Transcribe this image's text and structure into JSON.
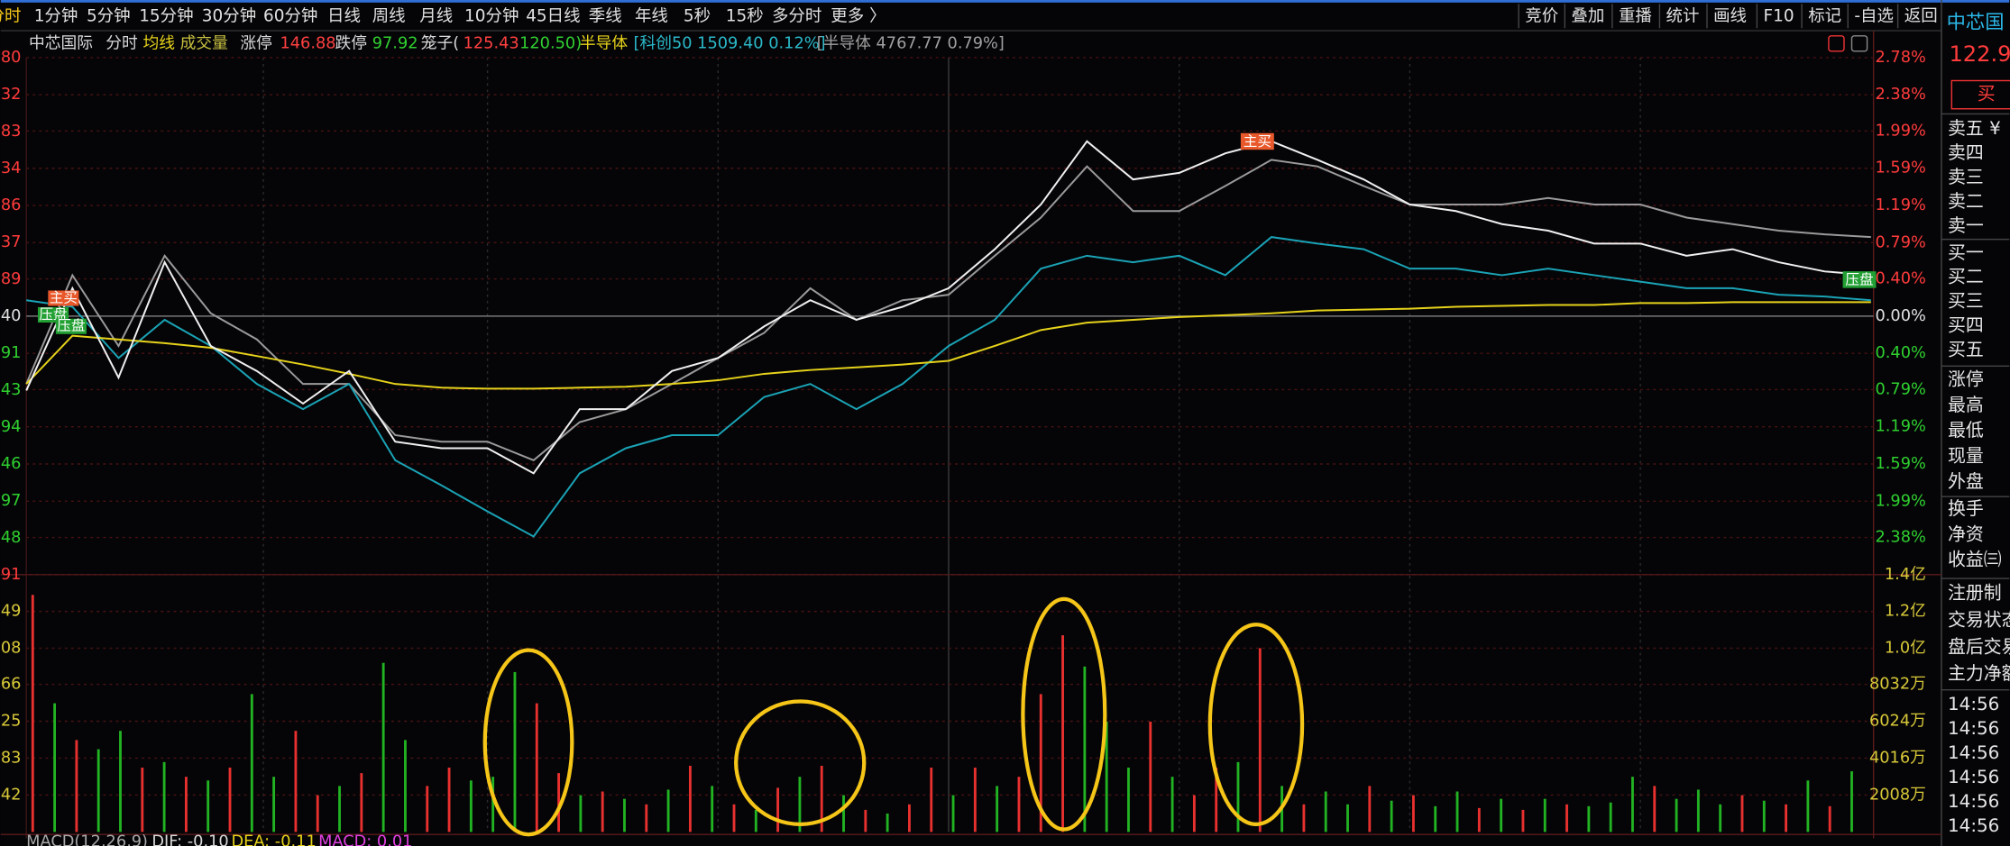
{
  "menu": {
    "periods": [
      "分时",
      "1分钟",
      "5分钟",
      "15分钟",
      "30分钟",
      "60分钟",
      "日线",
      "周线",
      "月线",
      "10分钟",
      "45日线",
      "季线",
      "年线",
      "5秒",
      "15秒",
      "多分时",
      "更多 〉"
    ],
    "tools": [
      "竞价",
      "叠加",
      "重播",
      "统计",
      "画线",
      "F10",
      "标记",
      "-自选",
      "返回"
    ]
  },
  "info": {
    "name": "中芯国际",
    "mode": "分时",
    "avg": "均线",
    "volume": "成交量",
    "limit_up_label": "涨停",
    "limit_up": "146.88",
    "limit_down_label": "跌停",
    "limit_down": "97.92",
    "cage_label": "笼子(",
    "cage_high": "125.43",
    "cage_low": "120.50)",
    "sector": "半导体",
    "index1": "[科创50 1509.40 0.12%]",
    "index2": "[半导体 4767.77 0.79%]"
  },
  "markers": [
    "主买",
    "压盘",
    "压盘",
    "主买",
    "压盘"
  ],
  "chart_data": [
    {
      "type": "line",
      "ylim": [
        -2.78,
        2.78
      ],
      "yticks": [
        {
          "value": 2.78,
          "label": "2.78%"
        },
        {
          "value": 2.38,
          "label": "2.38%"
        },
        {
          "value": 1.99,
          "label": "1.99%"
        },
        {
          "value": 1.59,
          "label": "1.59%"
        },
        {
          "value": 1.19,
          "label": "1.19%"
        },
        {
          "value": 0.79,
          "label": "0.79%"
        },
        {
          "value": 0.4,
          "label": "0.40%"
        },
        {
          "value": 0,
          "label": "0.00%"
        },
        {
          "value": -0.4,
          "label": "0.40%"
        },
        {
          "value": -0.79,
          "label": "0.79%"
        },
        {
          "value": -1.19,
          "label": "1.19%"
        },
        {
          "value": -1.59,
          "label": "1.59%"
        },
        {
          "value": -1.99,
          "label": "1.99%"
        },
        {
          "value": -2.38,
          "label": "2.38%"
        }
      ],
      "left_labels": [
        "80",
        "32",
        "83",
        "34",
        "86",
        "37",
        "89",
        "40",
        "91",
        "43",
        "94",
        "46",
        "97",
        "48",
        "91"
      ],
      "grid": true,
      "series": [
        {
          "color": "#9a9a9a",
          "values": [
            -0.73,
            0.44,
            -0.32,
            0.65,
            0.03,
            -0.25,
            -0.73,
            -0.73,
            -1.28,
            -1.35,
            -1.35,
            -1.55,
            -1.14,
            -1.0,
            -0.73,
            -0.45,
            -0.18,
            0.3,
            -0.04,
            0.17,
            0.23,
            0.65,
            1.06,
            1.61,
            1.13,
            1.13,
            1.4,
            1.68,
            1.61,
            1.4,
            1.2,
            1.2,
            1.2,
            1.27,
            1.2,
            1.2,
            1.06,
            0.99,
            0.92,
            0.88,
            0.85
          ]
        },
        {
          "color": "#1aa3b5",
          "values": [
            0.17,
            0.1,
            -0.45,
            -0.04,
            -0.32,
            -0.73,
            -1.0,
            -0.73,
            -1.55,
            -1.82,
            -2.1,
            -2.37,
            -1.69,
            -1.42,
            -1.28,
            -1.28,
            -0.87,
            -0.73,
            -1.0,
            -0.73,
            -0.32,
            -0.04,
            0.51,
            0.65,
            0.58,
            0.65,
            0.44,
            0.85,
            0.78,
            0.72,
            0.51,
            0.51,
            0.44,
            0.51,
            0.44,
            0.37,
            0.3,
            0.3,
            0.23,
            0.21,
            0.17
          ]
        },
        {
          "color": "#e6d21a",
          "values": [
            -0.73,
            -0.21,
            -0.25,
            -0.29,
            -0.34,
            -0.43,
            -0.52,
            -0.62,
            -0.73,
            -0.77,
            -0.78,
            -0.78,
            -0.77,
            -0.76,
            -0.73,
            -0.69,
            -0.62,
            -0.58,
            -0.55,
            -0.52,
            -0.48,
            -0.32,
            -0.15,
            -0.07,
            -0.04,
            -0.01,
            0.01,
            0.03,
            0.06,
            0.07,
            0.08,
            0.1,
            0.11,
            0.12,
            0.12,
            0.14,
            0.14,
            0.15,
            0.15,
            0.15,
            0.15
          ]
        },
        {
          "color": "#f0f0f0",
          "values": [
            -0.8,
            0.3,
            -0.66,
            0.58,
            -0.32,
            -0.59,
            -0.94,
            -0.59,
            -1.35,
            -1.42,
            -1.42,
            -1.69,
            -1.0,
            -1.0,
            -0.59,
            -0.45,
            -0.11,
            0.17,
            -0.04,
            0.1,
            0.3,
            0.72,
            1.2,
            1.88,
            1.47,
            1.54,
            1.75,
            1.88,
            1.68,
            1.47,
            1.2,
            1.13,
            0.99,
            0.92,
            0.78,
            0.78,
            0.65,
            0.72,
            0.58,
            0.48,
            0.44
          ]
        }
      ]
    },
    {
      "type": "bar",
      "ylim": [
        0,
        14000
      ],
      "yticks": [
        {
          "value": 14000,
          "label": "1.4亿"
        },
        {
          "value": 12000,
          "label": "1.2亿"
        },
        {
          "value": 10000,
          "label": "1.0亿"
        },
        {
          "value": 8032,
          "label": "8032万"
        },
        {
          "value": 6024,
          "label": "6024万"
        },
        {
          "value": 4016,
          "label": "4016万"
        },
        {
          "value": 2008,
          "label": "2008万"
        }
      ],
      "left_labels": [
        null,
        "49",
        "08",
        "66",
        "25",
        "83",
        "42"
      ],
      "grid": true,
      "values": [
        12900,
        7000,
        5000,
        4500,
        5500,
        3500,
        3800,
        3000,
        2800,
        3500,
        7500,
        3000,
        5500,
        2000,
        2500,
        3200,
        9200,
        5000,
        2500,
        3500,
        2800,
        3000,
        8700,
        7000,
        3200,
        2000,
        2200,
        1800,
        1500,
        2300,
        3600,
        2500,
        1500,
        1200,
        2400,
        3000,
        3600,
        2000,
        1200,
        1000,
        1500,
        3500,
        2000,
        3500,
        2500,
        3000,
        7500,
        10700,
        9000,
        6000,
        3500,
        6000,
        3000,
        2000,
        3500,
        3800,
        10000,
        2500,
        1500,
        2200,
        1500,
        2500,
        1700,
        2000,
        1400,
        2200,
        1300,
        1800,
        1200,
        1800,
        1500,
        1400,
        1600,
        3000,
        2500,
        1800,
        2300,
        1500,
        2000,
        1700,
        1500,
        2800,
        1400,
        3300
      ],
      "colors": [
        "#e8312f",
        "#22b322",
        "#e8312f",
        "#22b322",
        "#22b322",
        "#e8312f",
        "#22b322",
        "#e8312f",
        "#22b322",
        "#e8312f",
        "#22b322",
        "#22b322",
        "#e8312f",
        "#e8312f",
        "#22b322",
        "#e8312f",
        "#22b322",
        "#22b322",
        "#e8312f",
        "#e8312f",
        "#22b322",
        "#22b322",
        "#22b322",
        "#e8312f",
        "#e8312f",
        "#22b322",
        "#e8312f",
        "#22b322",
        "#e8312f",
        "#22b322",
        "#e8312f",
        "#22b322",
        "#e8312f",
        "#22b322",
        "#e8312f",
        "#22b322",
        "#e8312f",
        "#22b322",
        "#e8312f",
        "#22b322",
        "#e8312f",
        "#e8312f",
        "#22b322",
        "#e8312f",
        "#22b322",
        "#e8312f",
        "#e8312f",
        "#e8312f",
        "#22b322",
        "#22b322",
        "#22b322",
        "#e8312f",
        "#22b322",
        "#e8312f",
        "#e8312f",
        "#22b322",
        "#e8312f",
        "#22b322",
        "#e8312f",
        "#22b322",
        "#22b322",
        "#e8312f",
        "#22b322",
        "#e8312f",
        "#22b322",
        "#22b322",
        "#e8312f",
        "#22b322",
        "#e8312f",
        "#22b322",
        "#e8312f",
        "#22b322",
        "#22b322",
        "#22b322",
        "#e8312f",
        "#22b322",
        "#22b322",
        "#22b322",
        "#e8312f",
        "#22b322",
        "#e8312f",
        "#22b322",
        "#e8312f",
        "#22b322"
      ]
    }
  ],
  "macd": {
    "title": "MACD(12,26,9)",
    "dif": "DIF: -0.10",
    "dea": "DEA: -0.11",
    "macd": "MACD: 0.01"
  },
  "side": {
    "stock": "中芯国",
    "price": "122.9",
    "buy": "买",
    "rows": [
      "卖五 ¥",
      "卖四",
      "卖三",
      "卖二",
      "卖一",
      "买一",
      "买二",
      "买三",
      "买四",
      "买五",
      "涨停",
      "最高",
      "最低",
      "现量",
      "外盘",
      "换手",
      "净资",
      "收益㈢",
      "注册制",
      "交易状态",
      "盘后交易",
      "主力净额",
      "14:56",
      "14:56",
      "14:56",
      "14:56",
      "14:56",
      "14:56"
    ]
  }
}
